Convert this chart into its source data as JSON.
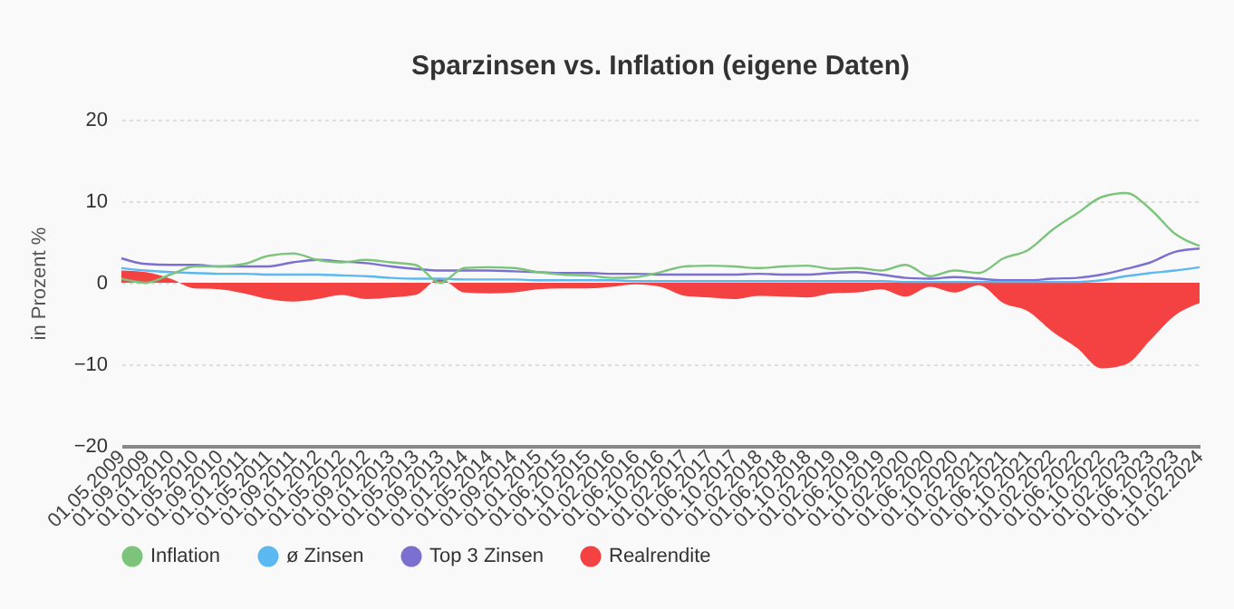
{
  "chart_data": {
    "type": "line",
    "title": "Sparzinsen vs. Inflation (eigene Daten)",
    "ylabel": "in Prozent %",
    "categories": [
      "01.05.2009",
      "01.09.2009",
      "01.01.2010",
      "01.05.2010",
      "01.09.2010",
      "01.01.2011",
      "01.05.2011",
      "01.09.2011",
      "01.01.2012",
      "01.05.2012",
      "01.09.2012",
      "01.01.2013",
      "01.05.2013",
      "01.09.2013",
      "01.01.2014",
      "01.05.2014",
      "01.09.2014",
      "01.01.2015",
      "01.06.2015",
      "01.10.2015",
      "01.02.2016",
      "01.06.2016",
      "01.10.2016",
      "01.02.2017",
      "01.06.2017",
      "01.10.2017",
      "01.02.2018",
      "01.06.2018",
      "01.10.2018",
      "01.02.2019",
      "01.06.2019",
      "01.10.2019",
      "01.02.2020",
      "01.06.2020",
      "01.10.2020",
      "01.02.2021",
      "01.06.2021",
      "01.10.2021",
      "01.02.2022",
      "01.06.2022",
      "01.10.2022",
      "01.02.2023",
      "01.06.2023",
      "01.10.2023",
      "01.02.2024"
    ],
    "series": [
      {
        "name": "Inflation",
        "color": "#7cc47c",
        "values": [
          0.5,
          0.0,
          1.0,
          2.0,
          2.0,
          2.3,
          3.3,
          3.6,
          2.8,
          2.5,
          2.8,
          2.5,
          2.2,
          0.0,
          1.8,
          1.9,
          1.8,
          1.3,
          1.0,
          0.9,
          0.6,
          0.7,
          1.3,
          2.0,
          2.1,
          2.0,
          1.8,
          2.0,
          2.1,
          1.7,
          1.8,
          1.5,
          2.2,
          0.8,
          1.5,
          1.2,
          3.0,
          4.0,
          6.5,
          8.5,
          10.5,
          11.0,
          9.0,
          6.0,
          4.5
        ]
      },
      {
        "name": "ø Zinsen",
        "color": "#5cb8f0",
        "values": [
          1.8,
          1.5,
          1.3,
          1.2,
          1.1,
          1.1,
          1.0,
          1.0,
          1.0,
          0.9,
          0.8,
          0.6,
          0.5,
          0.5,
          0.4,
          0.4,
          0.4,
          0.3,
          0.3,
          0.3,
          0.3,
          0.2,
          0.2,
          0.2,
          0.2,
          0.2,
          0.2,
          0.2,
          0.2,
          0.2,
          0.2,
          0.2,
          0.1,
          0.1,
          0.1,
          0.1,
          0.1,
          0.1,
          0.1,
          0.1,
          0.3,
          0.8,
          1.2,
          1.5,
          1.9
        ]
      },
      {
        "name": "Top 3 Zinsen",
        "color": "#7b6fd0",
        "values": [
          3.0,
          2.3,
          2.2,
          2.2,
          2.0,
          2.0,
          2.0,
          2.5,
          2.8,
          2.6,
          2.4,
          2.0,
          1.7,
          1.5,
          1.5,
          1.5,
          1.4,
          1.3,
          1.2,
          1.2,
          1.1,
          1.1,
          1.0,
          1.0,
          1.0,
          1.0,
          1.1,
          1.0,
          1.0,
          1.2,
          1.3,
          1.0,
          0.6,
          0.5,
          0.7,
          0.5,
          0.3,
          0.3,
          0.5,
          0.6,
          1.0,
          1.7,
          2.5,
          3.8,
          4.2
        ]
      },
      {
        "name": "Realrendite",
        "color": "#f44141",
        "type": "area",
        "values": [
          1.5,
          1.3,
          0.5,
          -0.7,
          -0.8,
          -1.3,
          -2.0,
          -2.3,
          -2.0,
          -1.5,
          -2.0,
          -1.8,
          -1.5,
          0.5,
          -1.2,
          -1.3,
          -1.2,
          -0.8,
          -0.7,
          -0.7,
          -0.5,
          -0.2,
          -0.5,
          -1.6,
          -1.8,
          -2.0,
          -1.6,
          -1.7,
          -1.8,
          -1.3,
          -1.2,
          -0.8,
          -1.7,
          -0.5,
          -1.2,
          -0.3,
          -2.5,
          -3.5,
          -6.0,
          -8.0,
          -10.5,
          -10.0,
          -7.0,
          -4.0,
          -2.5
        ]
      }
    ],
    "ylim": [
      -20,
      20
    ],
    "yticks": [
      -20,
      -10,
      0,
      10,
      20
    ],
    "grid": "y",
    "legend": "bottom"
  }
}
